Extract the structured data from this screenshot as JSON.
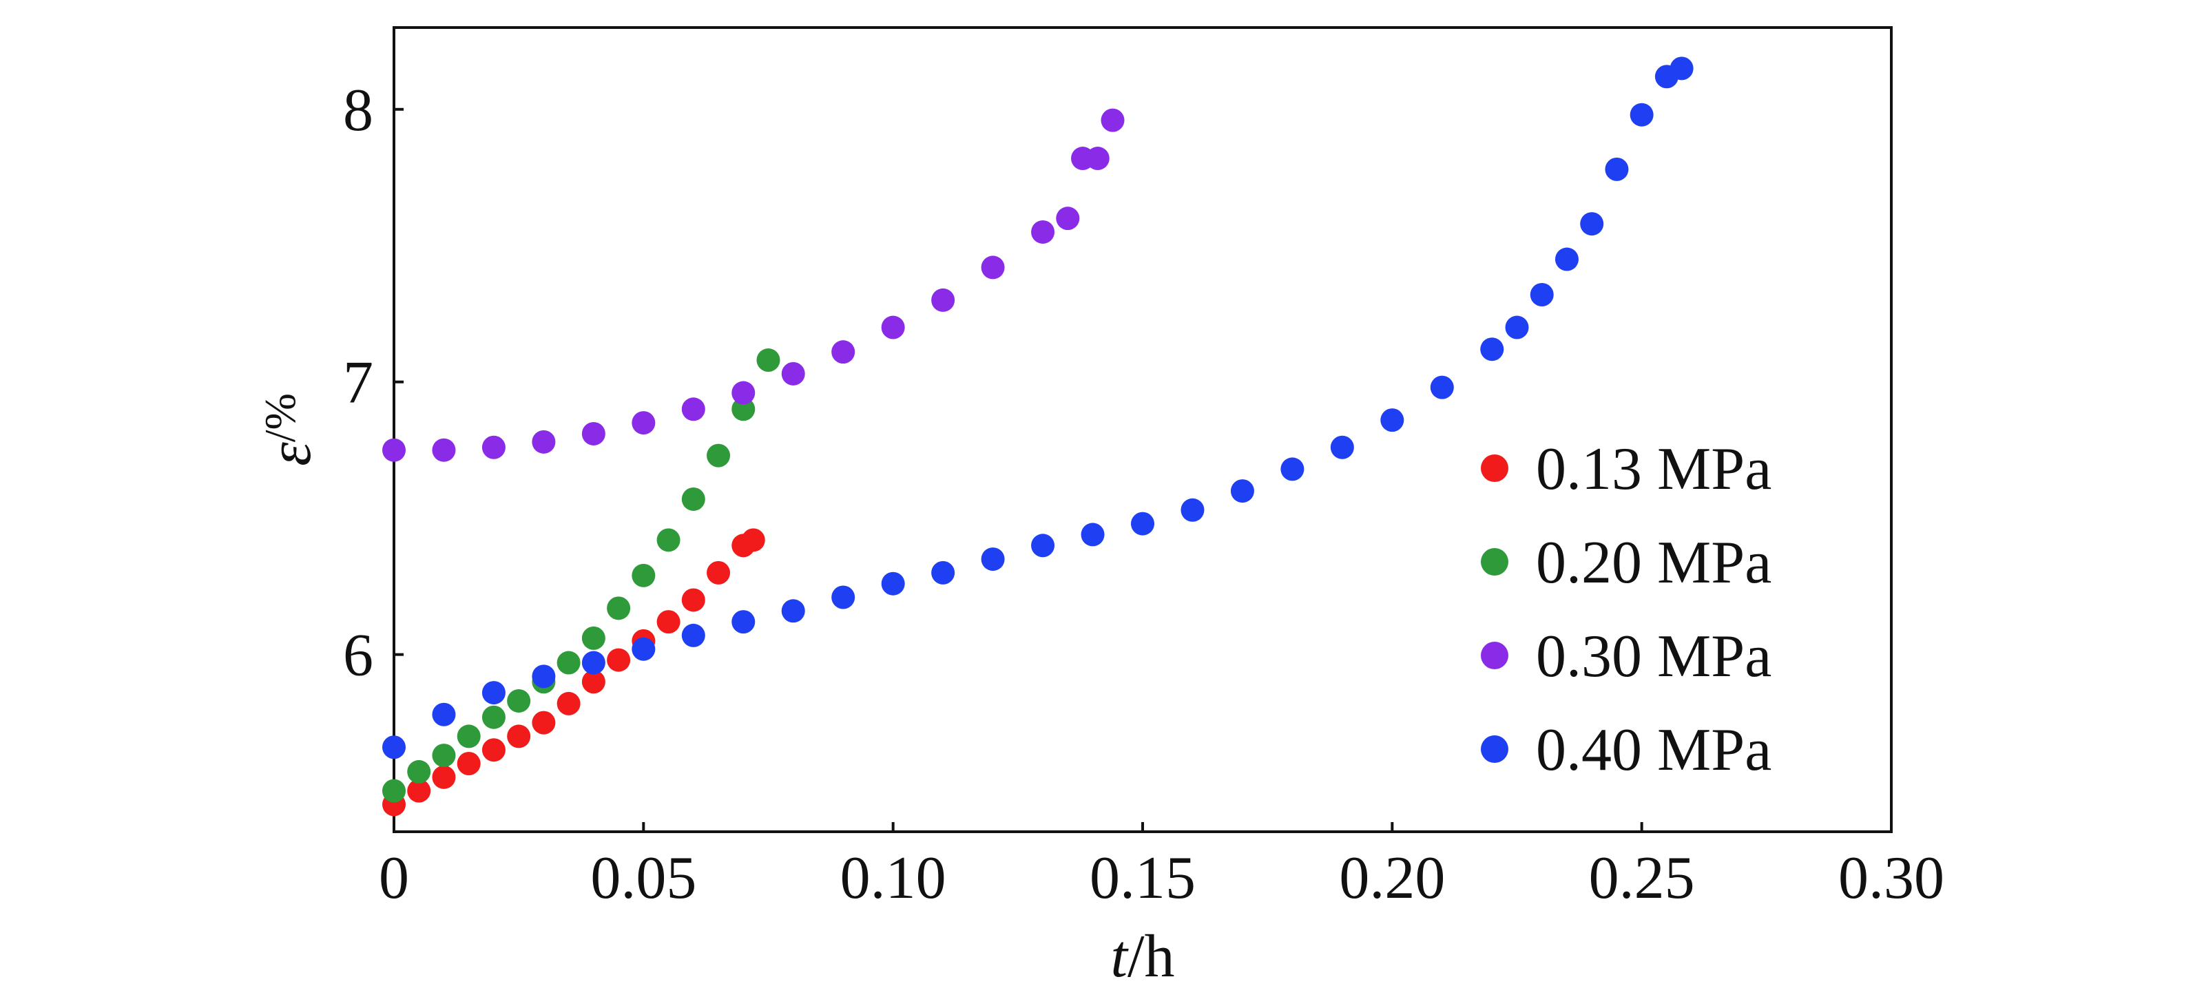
{
  "chart_data": {
    "type": "scatter",
    "title": "",
    "xlabel": {
      "var": "t",
      "unit": "/h"
    },
    "ylabel": {
      "var": "ε",
      "unit": "/%"
    },
    "xlim": [
      0,
      0.3
    ],
    "ylim": [
      5.35,
      8.3
    ],
    "xticks": [
      0,
      0.05,
      0.1,
      0.15,
      0.2,
      0.25,
      0.3
    ],
    "xtick_labels": [
      "0",
      "0.05",
      "0.10",
      "0.15",
      "0.20",
      "0.25",
      "0.30"
    ],
    "yticks": [
      6,
      7,
      8
    ],
    "ytick_labels": [
      "6",
      "7",
      "8"
    ],
    "grid": false,
    "legend_position": "lower-right",
    "series": [
      {
        "name": "0.13 MPa",
        "color": "#f21b1b",
        "points": [
          [
            0.0,
            5.45
          ],
          [
            0.005,
            5.5
          ],
          [
            0.01,
            5.55
          ],
          [
            0.015,
            5.6
          ],
          [
            0.02,
            5.65
          ],
          [
            0.025,
            5.7
          ],
          [
            0.03,
            5.75
          ],
          [
            0.035,
            5.82
          ],
          [
            0.04,
            5.9
          ],
          [
            0.045,
            5.98
          ],
          [
            0.05,
            6.05
          ],
          [
            0.055,
            6.12
          ],
          [
            0.06,
            6.2
          ],
          [
            0.065,
            6.3
          ],
          [
            0.07,
            6.4
          ],
          [
            0.072,
            6.42
          ]
        ]
      },
      {
        "name": "0.20 MPa",
        "color": "#2e9a3a",
        "points": [
          [
            0.0,
            5.5
          ],
          [
            0.005,
            5.57
          ],
          [
            0.01,
            5.63
          ],
          [
            0.015,
            5.7
          ],
          [
            0.02,
            5.77
          ],
          [
            0.025,
            5.83
          ],
          [
            0.03,
            5.9
          ],
          [
            0.035,
            5.97
          ],
          [
            0.04,
            6.06
          ],
          [
            0.045,
            6.17
          ],
          [
            0.05,
            6.29
          ],
          [
            0.055,
            6.42
          ],
          [
            0.06,
            6.57
          ],
          [
            0.065,
            6.73
          ],
          [
            0.07,
            6.9
          ],
          [
            0.075,
            7.08
          ]
        ]
      },
      {
        "name": "0.30 MPa",
        "color": "#8a2be8",
        "points": [
          [
            0.0,
            6.75
          ],
          [
            0.01,
            6.75
          ],
          [
            0.02,
            6.76
          ],
          [
            0.03,
            6.78
          ],
          [
            0.04,
            6.81
          ],
          [
            0.05,
            6.85
          ],
          [
            0.06,
            6.9
          ],
          [
            0.07,
            6.96
          ],
          [
            0.08,
            7.03
          ],
          [
            0.09,
            7.11
          ],
          [
            0.1,
            7.2
          ],
          [
            0.11,
            7.3
          ],
          [
            0.12,
            7.42
          ],
          [
            0.13,
            7.55
          ],
          [
            0.135,
            7.6
          ],
          [
            0.138,
            7.82
          ],
          [
            0.141,
            7.82
          ],
          [
            0.144,
            7.96
          ]
        ]
      },
      {
        "name": "0.40 MPa",
        "color": "#1f3ff2",
        "points": [
          [
            0.0,
            5.66
          ],
          [
            0.01,
            5.78
          ],
          [
            0.02,
            5.86
          ],
          [
            0.03,
            5.92
          ],
          [
            0.04,
            5.97
          ],
          [
            0.05,
            6.02
          ],
          [
            0.06,
            6.07
          ],
          [
            0.07,
            6.12
          ],
          [
            0.08,
            6.16
          ],
          [
            0.09,
            6.21
          ],
          [
            0.1,
            6.26
          ],
          [
            0.11,
            6.3
          ],
          [
            0.12,
            6.35
          ],
          [
            0.13,
            6.4
          ],
          [
            0.14,
            6.44
          ],
          [
            0.15,
            6.48
          ],
          [
            0.16,
            6.53
          ],
          [
            0.17,
            6.6
          ],
          [
            0.18,
            6.68
          ],
          [
            0.19,
            6.76
          ],
          [
            0.2,
            6.86
          ],
          [
            0.21,
            6.98
          ],
          [
            0.22,
            7.12
          ],
          [
            0.225,
            7.2
          ],
          [
            0.23,
            7.32
          ],
          [
            0.235,
            7.45
          ],
          [
            0.24,
            7.58
          ],
          [
            0.245,
            7.78
          ],
          [
            0.25,
            7.98
          ],
          [
            0.255,
            8.12
          ],
          [
            0.258,
            8.15
          ]
        ]
      }
    ]
  }
}
